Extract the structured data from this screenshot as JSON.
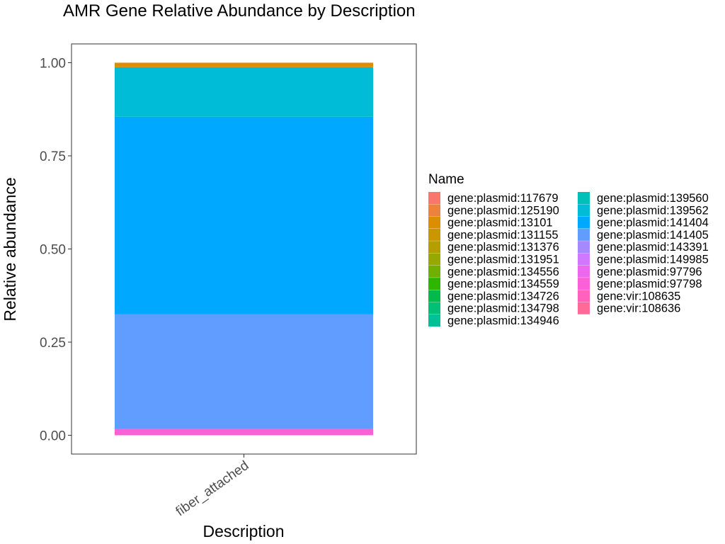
{
  "chart_data": {
    "type": "bar",
    "stacked": true,
    "title": "AMR Gene Relative Abundance by Description",
    "xlabel": "Description",
    "ylabel": "Relative abundance",
    "categories": [
      "fiber_attached"
    ],
    "ylim": [
      0,
      1
    ],
    "yticks": [
      "0.00",
      "0.25",
      "0.50",
      "0.75",
      "1.00"
    ],
    "grid": false,
    "legend_title": "Name",
    "legend_position": "right",
    "series": [
      {
        "name": "gene:plasmid:117679",
        "color": "#F8766D",
        "values": [
          0
        ]
      },
      {
        "name": "gene:plasmid:125190",
        "color": "#EC823C",
        "values": [
          0
        ]
      },
      {
        "name": "gene:plasmid:13101",
        "color": "#DD8D00",
        "values": [
          0.012
        ]
      },
      {
        "name": "gene:plasmid:131155",
        "color": "#CA9700",
        "values": [
          0
        ]
      },
      {
        "name": "gene:plasmid:131376",
        "color": "#B3A000",
        "values": [
          0
        ]
      },
      {
        "name": "gene:plasmid:131951",
        "color": "#97A900",
        "values": [
          0
        ]
      },
      {
        "name": "gene:plasmid:134556",
        "color": "#71B000",
        "values": [
          0
        ]
      },
      {
        "name": "gene:plasmid:134559",
        "color": "#2FB600",
        "values": [
          0
        ]
      },
      {
        "name": "gene:plasmid:134726",
        "color": "#00BB4B",
        "values": [
          0
        ]
      },
      {
        "name": "gene:plasmid:134798",
        "color": "#00BF76",
        "values": [
          0
        ]
      },
      {
        "name": "gene:plasmid:134946",
        "color": "#00C098",
        "values": [
          0
        ]
      },
      {
        "name": "gene:plasmid:139560",
        "color": "#00C0B7",
        "values": [
          0
        ]
      },
      {
        "name": "gene:plasmid:139562",
        "color": "#00BCD6",
        "values": [
          0.133
        ]
      },
      {
        "name": "gene:plasmid:141404",
        "color": "#00A9FF",
        "values": [
          0.53
        ]
      },
      {
        "name": "gene:plasmid:141405",
        "color": "#619CFF",
        "values": [
          0.307
        ]
      },
      {
        "name": "gene:plasmid:143391",
        "color": "#A58AFF",
        "values": [
          0
        ]
      },
      {
        "name": "gene:plasmid:149985",
        "color": "#D078FF",
        "values": [
          0
        ]
      },
      {
        "name": "gene:plasmid:97796",
        "color": "#EC69EF",
        "values": [
          0
        ]
      },
      {
        "name": "gene:plasmid:97798",
        "color": "#FB61D7",
        "values": [
          0.018
        ]
      },
      {
        "name": "gene:vir:108635",
        "color": "#FF62BC",
        "values": [
          0
        ]
      },
      {
        "name": "gene:vir:108636",
        "color": "#FF6A98",
        "values": [
          0
        ]
      }
    ]
  }
}
